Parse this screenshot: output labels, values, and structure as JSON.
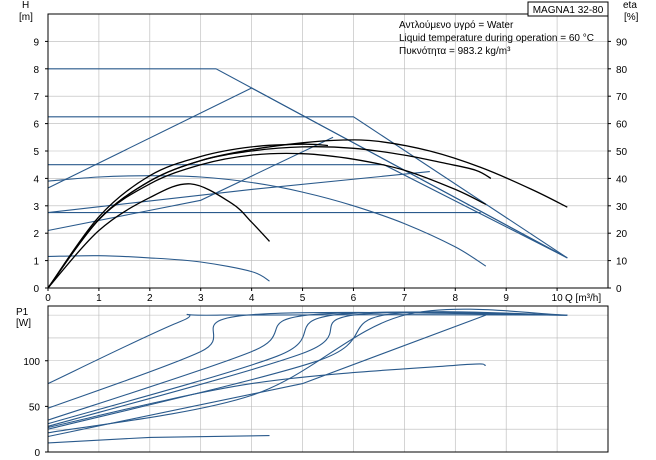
{
  "title": "MAGNA1 32-80",
  "info_lines": [
    "Αντλούμενο υγρό = Water",
    "Liquid temperature during operation = 60 °C",
    "Πυκνότητα = 983.2 kg/m³"
  ],
  "colors": {
    "curve_blue": "#2a5a8c",
    "curve_black": "#000000",
    "grid": "#b8b8b8",
    "axis": "#000000"
  },
  "chart_data": [
    {
      "type": "line",
      "xlabel": "Q [m³/h]",
      "ylabel_top": "H",
      "ylabel_unit": "[m]",
      "y2label_top": "eta",
      "y2label_unit": "[%]",
      "xlim": [
        0,
        11
      ],
      "ylim": [
        0,
        10
      ],
      "y2lim": [
        0,
        100
      ],
      "x_ticks": [
        "0",
        "1",
        "2",
        "3",
        "4",
        "5",
        "6",
        "7",
        "8",
        "9",
        "10"
      ],
      "y_ticks": [
        "0",
        "1",
        "2",
        "3",
        "4",
        "5",
        "6",
        "7",
        "8",
        "9"
      ],
      "y2_ticks": [
        "0",
        "10",
        "20",
        "30",
        "40",
        "50",
        "60",
        "70",
        "80",
        "90"
      ],
      "grid": true,
      "series": [
        {
          "kind": "head",
          "x": [
            0,
            3.3,
            10.2
          ],
          "y": [
            8.0,
            8.0,
            1.1
          ]
        },
        {
          "kind": "head",
          "x": [
            0,
            6.0,
            10.2
          ],
          "y": [
            6.25,
            6.25,
            1.1
          ]
        },
        {
          "kind": "head",
          "x": [
            0,
            6.6,
            10.2
          ],
          "y": [
            4.5,
            4.5,
            1.1
          ]
        },
        {
          "kind": "head",
          "x": [
            0,
            8.5
          ],
          "y": [
            2.75,
            2.75
          ]
        },
        {
          "kind": "head",
          "x": [
            0,
            1.0,
            2.0,
            3.0,
            4.0,
            5.0,
            6.0,
            7.0,
            8.0,
            8.6
          ],
          "y": [
            3.9,
            4.05,
            4.1,
            4.05,
            3.85,
            3.5,
            3.0,
            2.35,
            1.5,
            0.8
          ]
        },
        {
          "kind": "head",
          "x": [
            0,
            1.0,
            2.0,
            3.0,
            4.0,
            4.35
          ],
          "y": [
            1.15,
            1.18,
            1.1,
            0.95,
            0.6,
            0.25
          ]
        },
        {
          "kind": "system",
          "x": [
            0,
            4.0,
            10.2
          ],
          "y": [
            3.65,
            7.3,
            1.1
          ]
        },
        {
          "kind": "system",
          "x": [
            0,
            3.0,
            5.6
          ],
          "y": [
            2.1,
            3.2,
            5.5
          ]
        },
        {
          "kind": "system",
          "x": [
            0,
            4.0,
            7.5
          ],
          "y": [
            2.75,
            3.6,
            4.25
          ]
        },
        {
          "kind": "efficiency",
          "x": [
            0,
            1.0,
            2.0,
            3.0,
            4.0,
            5.0,
            5.8,
            6.5,
            7.5,
            8.5,
            9.5,
            10.2
          ],
          "y": [
            0,
            25,
            39,
            46.5,
            50.5,
            53,
            54,
            53.5,
            50,
            44,
            36,
            29.5
          ]
        },
        {
          "kind": "efficiency",
          "x": [
            0,
            1.0,
            2.0,
            3.0,
            4.0,
            5.0,
            6.0,
            7.0,
            8.0,
            8.6
          ],
          "y": [
            0,
            25,
            38,
            45,
            48.5,
            49,
            47,
            43,
            36,
            30.5
          ]
        },
        {
          "kind": "efficiency",
          "x": [
            0,
            1.0,
            2.0,
            2.8,
            3.6,
            4.0,
            4.35
          ],
          "y": [
            0,
            21,
            33,
            38,
            31,
            24,
            17
          ]
        },
        {
          "kind": "efficiency",
          "x": [
            0,
            1.0,
            2.0,
            3.0,
            4.0,
            5.0,
            6.0,
            7.0,
            7.8,
            8.4,
            8.7
          ],
          "y": [
            0,
            25,
            39,
            46.5,
            50,
            51.5,
            51,
            48.5,
            45.5,
            43,
            40
          ]
        },
        {
          "kind": "efficiency",
          "x": [
            0,
            1.0,
            2.0,
            3.0,
            4.0,
            5.0,
            5.5
          ],
          "y": [
            0,
            26,
            41,
            48,
            51.5,
            52.5,
            52
          ]
        }
      ]
    },
    {
      "type": "line",
      "xlabel": "",
      "ylabel_top": "P1",
      "ylabel_unit": "[W]",
      "xlim": [
        0,
        11
      ],
      "ylim": [
        0,
        160
      ],
      "y_ticks": [
        "0",
        "50",
        "100"
      ],
      "grid": true,
      "series": [
        {
          "kind": "power",
          "x": [
            0,
            2.6,
            3.4,
            10.2
          ],
          "y": [
            75,
            143,
            150,
            150
          ]
        },
        {
          "kind": "power",
          "x": [
            0,
            3.0,
            3.9,
            10.2
          ],
          "y": [
            48,
            110,
            150,
            150
          ]
        },
        {
          "kind": "power",
          "x": [
            0,
            4.0,
            5.1,
            10.2
          ],
          "y": [
            35,
            110,
            150,
            150
          ]
        },
        {
          "kind": "power",
          "x": [
            0,
            4.5,
            5.6,
            10.2
          ],
          "y": [
            31,
            105,
            150,
            150
          ]
        },
        {
          "kind": "power",
          "x": [
            0,
            5.0,
            6.0,
            10.2
          ],
          "y": [
            28,
            108,
            150,
            150
          ]
        },
        {
          "kind": "power",
          "x": [
            0,
            5.3,
            6.6,
            10.2
          ],
          "y": [
            25,
            100,
            150,
            150
          ]
        },
        {
          "kind": "power",
          "x": [
            0,
            4.0,
            7.0,
            10.2
          ],
          "y": [
            21,
            62,
            150,
            150
          ]
        },
        {
          "kind": "power",
          "x": [
            0,
            5.0,
            8.6
          ],
          "y": [
            17,
            75,
            150
          ]
        },
        {
          "kind": "power",
          "x": [
            0,
            4.0,
            8.0,
            8.6
          ],
          "y": [
            27,
            75,
            95,
            95
          ]
        },
        {
          "kind": "power",
          "x": [
            0,
            2.0,
            4.35
          ],
          "y": [
            10,
            16,
            18
          ]
        }
      ]
    }
  ]
}
